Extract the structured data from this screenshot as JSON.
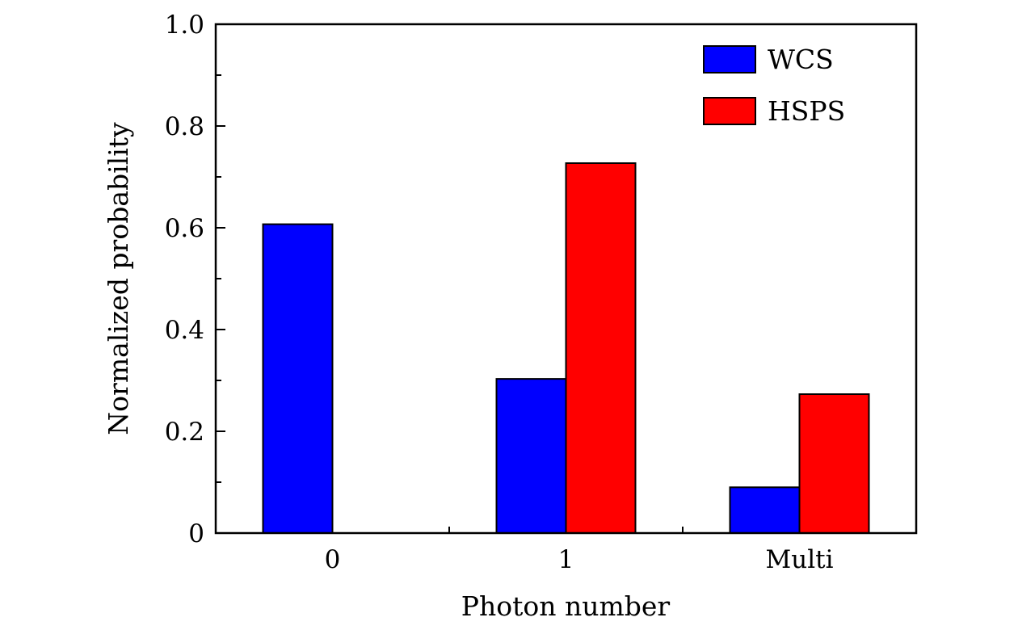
{
  "chart_data": {
    "type": "bar",
    "categories": [
      "0",
      "1",
      "Multi"
    ],
    "series": [
      {
        "name": "WCS",
        "color": "#0000ff",
        "values": [
          0.607,
          0.303,
          0.09
        ]
      },
      {
        "name": "HSPS",
        "color": "#ff0000",
        "values": [
          0.0,
          0.727,
          0.273
        ]
      }
    ],
    "xlabel": "Photon number",
    "ylabel": "Normalized probability",
    "ylim": [
      0,
      1.0
    ],
    "yticks": [
      0,
      0.2,
      0.4,
      0.6,
      0.8,
      1.0
    ],
    "ytick_labels": [
      "0",
      "0.2",
      "0.4",
      "0.6",
      "0.8",
      "1.0"
    ],
    "legend_position": "top-right",
    "grid": false
  }
}
